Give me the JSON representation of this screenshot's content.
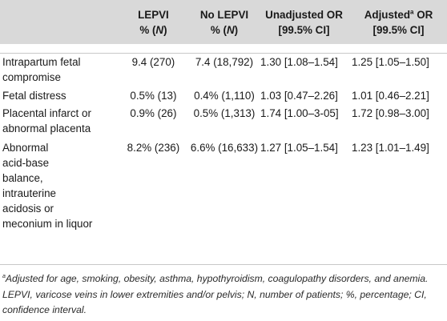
{
  "header": {
    "col1": "",
    "col2_line1": "LEPVI",
    "col2_line2_prefix": "% (",
    "col2_line2_n": "N",
    "col2_line2_suffix": ")",
    "col3_line1": "No LEPVI",
    "col3_line2_prefix": "% (",
    "col3_line2_n": "N",
    "col3_line2_suffix": ")",
    "col4_line1": "Unadjusted OR",
    "col4_line2": "[99.5% CI]",
    "col5_line1_a": "Adjusted",
    "col5_line1_sup": "a",
    "col5_line1_b": " OR",
    "col5_line2": "[99.5% CI]"
  },
  "rows": [
    {
      "label_lines": [
        "Intrapartum fetal",
        "compromise"
      ],
      "lepvi": "9.4 (270)",
      "no_lepvi": "7.4 (18,792)",
      "unadjusted": "1.30 [1.08–1.54]",
      "adjusted": "1.25 [1.05–1.50]"
    },
    {
      "label_lines": [
        "Fetal distress"
      ],
      "lepvi": "0.5% (13)",
      "no_lepvi": "0.4% (1,110)",
      "unadjusted": "1.03 [0.47–2.26]",
      "adjusted": "1.01 [0.46–2.21]"
    },
    {
      "label_lines": [
        "Placental infarct or",
        "abnormal placenta"
      ],
      "lepvi": "0.9% (26)",
      "no_lepvi": "0.5% (1,313)",
      "unadjusted": "1.74 [1.00–3-05]",
      "adjusted": "1.72 [0.98–3.00]"
    },
    {
      "label_lines": [
        "Abnormal",
        "acid-base",
        "balance,",
        "intrauterine",
        "acidosis or",
        "meconium in liquor"
      ],
      "lepvi": "8.2% (236)",
      "no_lepvi": "6.6% (16,633)",
      "unadjusted": "1.27 [1.05–1.54]",
      "adjusted": "1.23 [1.01–1.49]"
    }
  ],
  "footnote": {
    "marker": "a",
    "text": "Adjusted for age, smoking, obesity, asthma, hypothyroidism, coagulopathy disorders, and anemia. LEPVI, varicose veins in lower extremities and/or pelvis; N, number of patients; %, percentage; CI, confidence interval."
  }
}
